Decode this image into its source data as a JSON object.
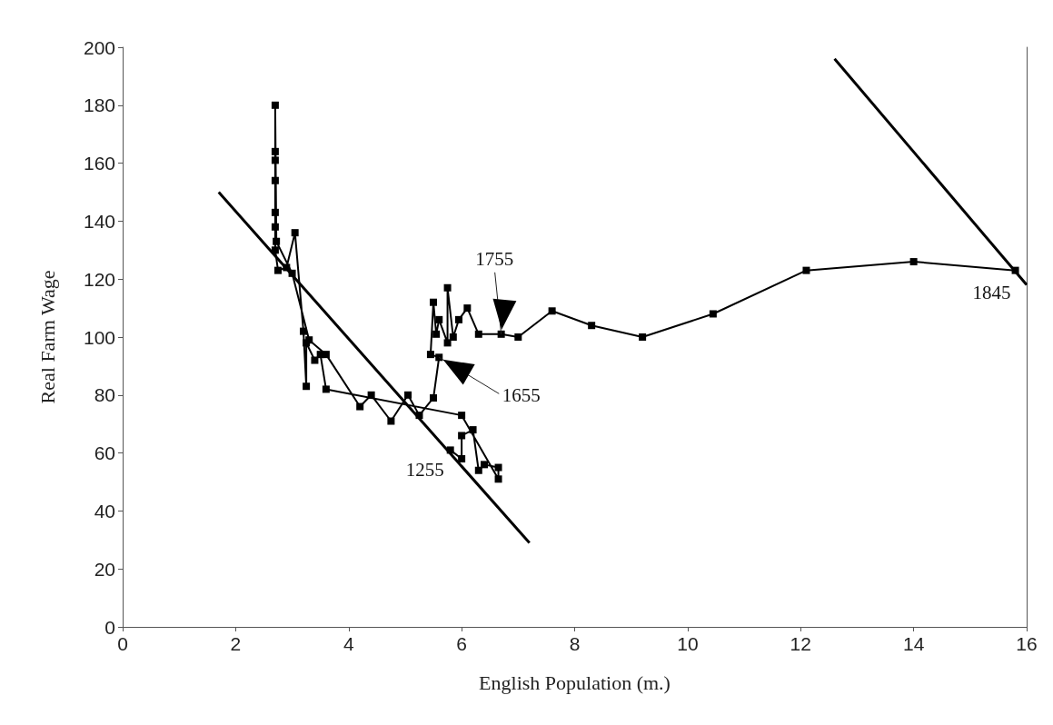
{
  "chart_data": {
    "type": "line",
    "xlabel": "English Population (m.)",
    "ylabel": "Real Farm Wage",
    "xlim": [
      0,
      16
    ],
    "xticks": [
      0,
      2,
      4,
      6,
      8,
      10,
      12,
      14,
      16
    ],
    "ylim": [
      0,
      200
    ],
    "yticks": [
      0,
      20,
      40,
      60,
      80,
      100,
      120,
      140,
      160,
      180,
      200
    ],
    "grid": false,
    "marker": "square",
    "line_style": "solid",
    "series": [
      {
        "color": "#000000",
        "x": [
          5.8,
          6.0,
          6.0,
          6.2,
          6.3,
          6.4,
          6.65,
          6.65,
          6.0,
          3.6,
          3.5,
          3.4,
          3.25,
          3.25,
          3.2,
          3.05,
          2.9,
          2.75,
          2.7,
          2.7,
          2.7,
          2.7,
          2.7,
          2.7,
          2.7,
          2.72,
          3.0,
          3.3,
          3.6,
          4.2,
          4.4,
          4.75,
          5.05,
          5.25,
          5.5,
          5.6,
          5.45,
          5.5,
          5.55,
          5.6,
          5.75,
          5.75,
          5.85,
          5.95,
          6.1,
          6.3,
          6.7,
          7.0,
          7.6,
          8.3,
          9.2,
          10.45,
          12.1,
          14.0,
          15.8
        ],
        "values": [
          61,
          58,
          66,
          68,
          54,
          56,
          55,
          51,
          73,
          82,
          94,
          92,
          98,
          83,
          102,
          136,
          124,
          123,
          130,
          138,
          143,
          154,
          161,
          164,
          180,
          133,
          122,
          99,
          94,
          76,
          80,
          71,
          80,
          73,
          79,
          93,
          94,
          112,
          101,
          106,
          98,
          117,
          100,
          106,
          110,
          101,
          101,
          100,
          109,
          104,
          100,
          108,
          123,
          126,
          123
        ]
      },
      {
        "type": "line",
        "marker": "none",
        "color": "#000000",
        "x": [
          1.7,
          7.2
        ],
        "values": [
          150,
          29
        ]
      },
      {
        "type": "line",
        "marker": "none",
        "color": "#000000",
        "x": [
          12.6,
          16
        ],
        "values": [
          196,
          118
        ]
      }
    ],
    "annotations": [
      {
        "text": "1255",
        "x": 5.8,
        "y": 61
      },
      {
        "text": "1655",
        "x": 5.6,
        "y": 93
      },
      {
        "text": "1755",
        "x": 6.7,
        "y": 101
      },
      {
        "text": "1845",
        "x": 15.8,
        "y": 123
      }
    ]
  }
}
